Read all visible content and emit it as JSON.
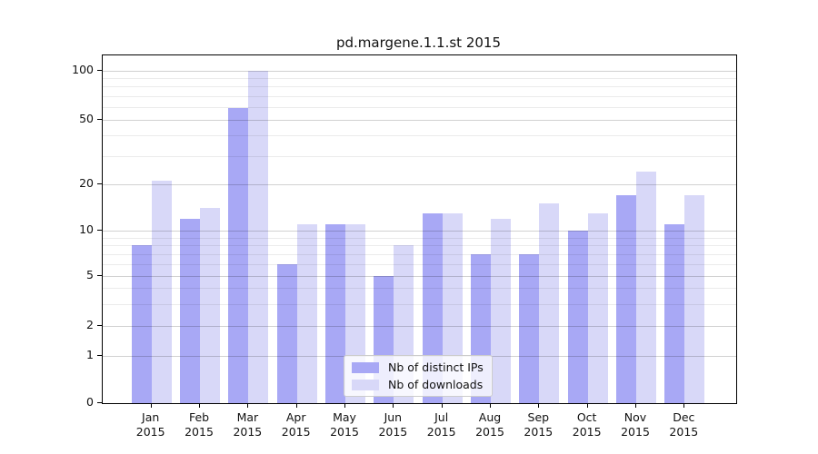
{
  "title": "pd.margene.1.1.st 2015",
  "chart_data": {
    "type": "bar",
    "title": "pd.margene.1.1.st 2015",
    "categories": [
      "Jan 2015",
      "Feb 2015",
      "Mar 2015",
      "Apr 2015",
      "May 2015",
      "Jun 2015",
      "Jul 2015",
      "Aug 2015",
      "Sep 2015",
      "Oct 2015",
      "Nov 2015",
      "Dec 2015"
    ],
    "months": [
      "Jan",
      "Feb",
      "Mar",
      "Apr",
      "May",
      "Jun",
      "Jul",
      "Aug",
      "Sep",
      "Oct",
      "Nov",
      "Dec"
    ],
    "year_label": "2015",
    "series": [
      {
        "name": "Nb of distinct IPs",
        "color": "#a8a8f5",
        "values": [
          8,
          12,
          59,
          6,
          11,
          5,
          13,
          7,
          7,
          10,
          17,
          11
        ]
      },
      {
        "name": "Nb of downloads",
        "color": "#d8d8f8",
        "values": [
          21,
          14,
          100,
          11,
          11,
          8,
          13,
          12,
          15,
          13,
          24,
          17
        ]
      }
    ],
    "xlabel": "",
    "ylabel": "",
    "yscale": "log (symlog-like, linear below 1)",
    "ylim": [
      0,
      122
    ],
    "y_ticks": [
      100,
      50,
      20,
      10,
      5,
      2,
      1,
      0
    ],
    "y_minor_gridlines": [
      90,
      80,
      70,
      60,
      40,
      30,
      9,
      8,
      7,
      6,
      4,
      3
    ],
    "grid": true,
    "legend_position": "lower center, inside axes",
    "colors": {
      "distinct_ips_bar": "#a8a8f5",
      "downloads_bar": "#d8d8f8",
      "axis": "#000000",
      "major_grid": "#cccccc",
      "minor_grid": "#e9e9e9",
      "background": "#ffffff"
    }
  }
}
